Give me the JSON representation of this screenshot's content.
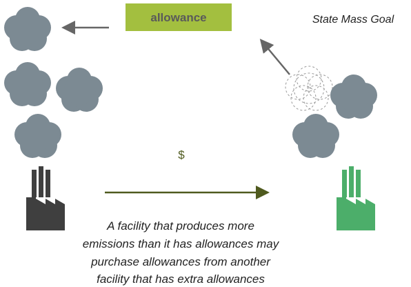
{
  "header": {
    "box_label": "allowance",
    "goal": "State Mass Goal"
  },
  "trade": {
    "symbol": "$"
  },
  "caption": {
    "lines": [
      "A facility that produces more",
      "emissions than it has allowances may",
      "purchase allowances from another",
      "facility that has extra allowances"
    ]
  }
}
